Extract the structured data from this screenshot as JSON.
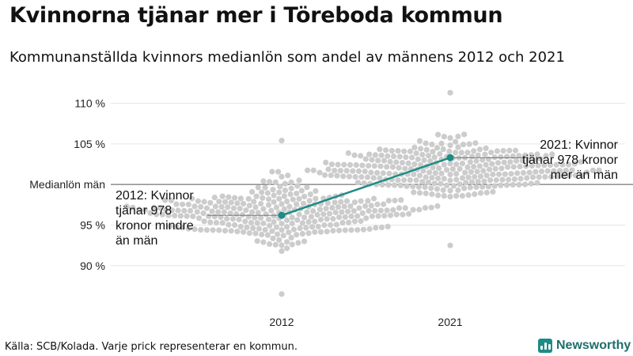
{
  "header": {
    "title": "Kvinnorna tjänar mer i Töreboda kommun",
    "subtitle": "Kommunanställda kvinnors medianlön som andel av männens 2012 och 2021"
  },
  "footer": {
    "source": "Källa: SCB/Kolada. Varje prick representerar en kommun.",
    "brand": "Newsworthy"
  },
  "colors": {
    "dot": "#cccccc",
    "highlight": "#1d8c84",
    "gridline": "#e6e6e6",
    "reference_line": "#555555"
  },
  "chart_data": {
    "type": "scatter",
    "title": "Kvinnorna tjänar mer i Töreboda kommun",
    "subtitle": "Kommunanställda kvinnors medianlön som andel av männens 2012 och 2021",
    "categories": [
      "2012",
      "2021"
    ],
    "y_ticks": [
      {
        "value": 90,
        "label": "90 %"
      },
      {
        "value": 95,
        "label": "95 %"
      },
      {
        "value": 105,
        "label": "105 %"
      },
      {
        "value": 110,
        "label": "110 %"
      }
    ],
    "ylim": [
      85.5,
      112
    ],
    "reference_line": {
      "value": 100,
      "label": "Medianlön män"
    },
    "distribution": [
      {
        "category": "2012",
        "min": 86.5,
        "max": 105.4,
        "center": 96.5,
        "spread": 2.6
      },
      {
        "category": "2021",
        "min": 92.5,
        "max": 111.3,
        "center": 101.8,
        "spread": 2.4
      }
    ],
    "highlight": {
      "name": "Töreboda",
      "points": [
        {
          "category": "2012",
          "value": 96.2
        },
        {
          "category": "2021",
          "value": 103.3
        }
      ]
    },
    "annotations": [
      {
        "category": "2012",
        "lines": [
          "2012: Kvinnor",
          "tjänar 978",
          "kronor mindre",
          "än män"
        ]
      },
      {
        "category": "2021",
        "lines": [
          "2021: Kvinnor",
          "tjänar 978 kronor",
          "mer än män"
        ]
      }
    ]
  }
}
